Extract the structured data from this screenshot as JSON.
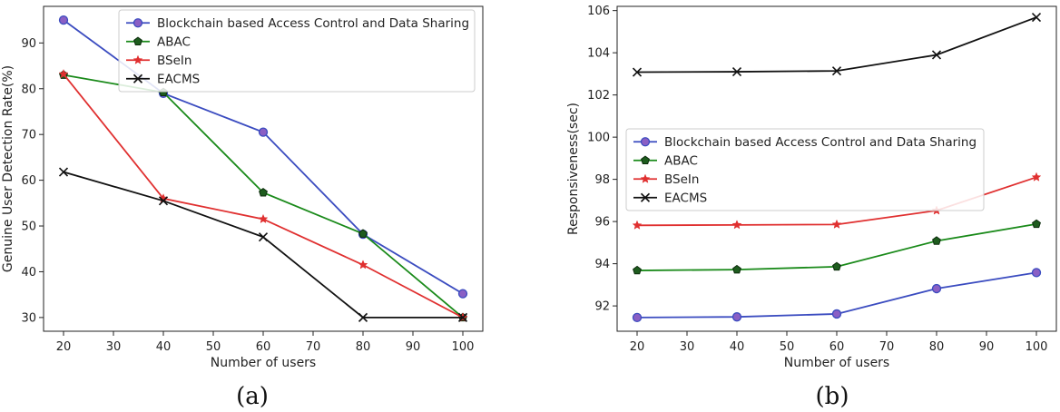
{
  "chart_data": [
    {
      "type": "line",
      "caption": "(a)",
      "xlabel": "Number of users",
      "ylabel": "Genuine User Detection Rate(%)",
      "xlim": [
        16,
        104
      ],
      "ylim": [
        27,
        98
      ],
      "xticks": [
        20,
        30,
        40,
        50,
        60,
        70,
        80,
        90,
        100
      ],
      "yticks": [
        30,
        40,
        50,
        60,
        70,
        80,
        90
      ],
      "grid": false,
      "legend_position": "top-right",
      "x": [
        20,
        40,
        60,
        80,
        100
      ],
      "series": [
        {
          "name": "Blockchain based Access Control and Data Sharing",
          "color": "#3b4cc0",
          "marker": "circle",
          "values": [
            95,
            79,
            70.5,
            48.2,
            35.2
          ]
        },
        {
          "name": "ABAC",
          "color": "#1a8a1a",
          "marker": "pentagon",
          "values": [
            83,
            79.2,
            57.3,
            48.3,
            30
          ]
        },
        {
          "name": "BSeIn",
          "color": "#e03030",
          "marker": "star",
          "values": [
            83.2,
            56,
            51.5,
            41.5,
            30
          ]
        },
        {
          "name": "EACMS",
          "color": "#111111",
          "marker": "x",
          "values": [
            61.8,
            55.5,
            47.6,
            30,
            30
          ]
        }
      ]
    },
    {
      "type": "line",
      "caption": "(b)",
      "xlabel": "Number of users",
      "ylabel": "Responsiveness(sec)",
      "xlim": [
        16,
        104
      ],
      "ylim": [
        90.8,
        106.2
      ],
      "xticks": [
        20,
        30,
        40,
        50,
        60,
        70,
        80,
        90,
        100
      ],
      "yticks": [
        92,
        94,
        96,
        98,
        100,
        102,
        104,
        106
      ],
      "grid": false,
      "legend_position": "center-left",
      "x": [
        20,
        40,
        60,
        80,
        100
      ],
      "series": [
        {
          "name": "Blockchain based Access Control and Data Sharing",
          "color": "#3b4cc0",
          "marker": "circle",
          "values": [
            91.45,
            91.48,
            91.62,
            92.82,
            93.58
          ]
        },
        {
          "name": "ABAC",
          "color": "#1a8a1a",
          "marker": "pentagon",
          "values": [
            93.68,
            93.72,
            93.86,
            95.08,
            95.88
          ]
        },
        {
          "name": "BSeIn",
          "color": "#e03030",
          "marker": "star",
          "values": [
            95.82,
            95.84,
            95.86,
            96.52,
            98.1
          ]
        },
        {
          "name": "EACMS",
          "color": "#111111",
          "marker": "x",
          "values": [
            103.08,
            103.1,
            103.14,
            103.9,
            105.68
          ]
        }
      ]
    }
  ]
}
